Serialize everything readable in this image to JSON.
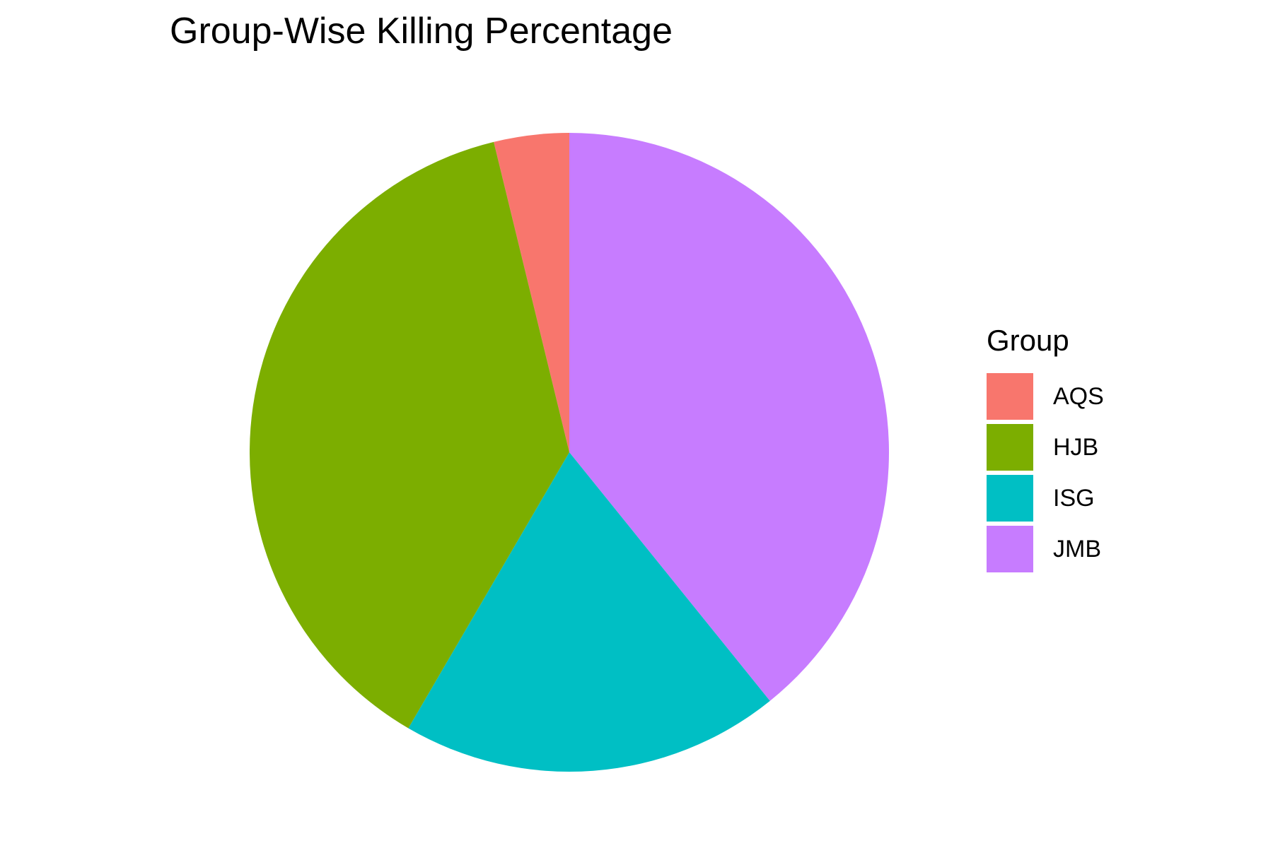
{
  "chart_data": {
    "type": "pie",
    "title": "Group-Wise Killing Percentage",
    "legend": {
      "title": "Group",
      "placement": "right"
    },
    "slices": [
      {
        "label": "AQS",
        "value": 3.8,
        "color": "#F8766D"
      },
      {
        "label": "JMB",
        "value": 39.2,
        "color": "#C77CFF"
      },
      {
        "label": "ISG",
        "value": 19.2,
        "color": "#00BFC4"
      },
      {
        "label": "HJB",
        "value": 37.8,
        "color": "#7CAE00"
      }
    ],
    "legend_order": [
      "AQS",
      "HJB",
      "ISG",
      "JMB"
    ]
  }
}
